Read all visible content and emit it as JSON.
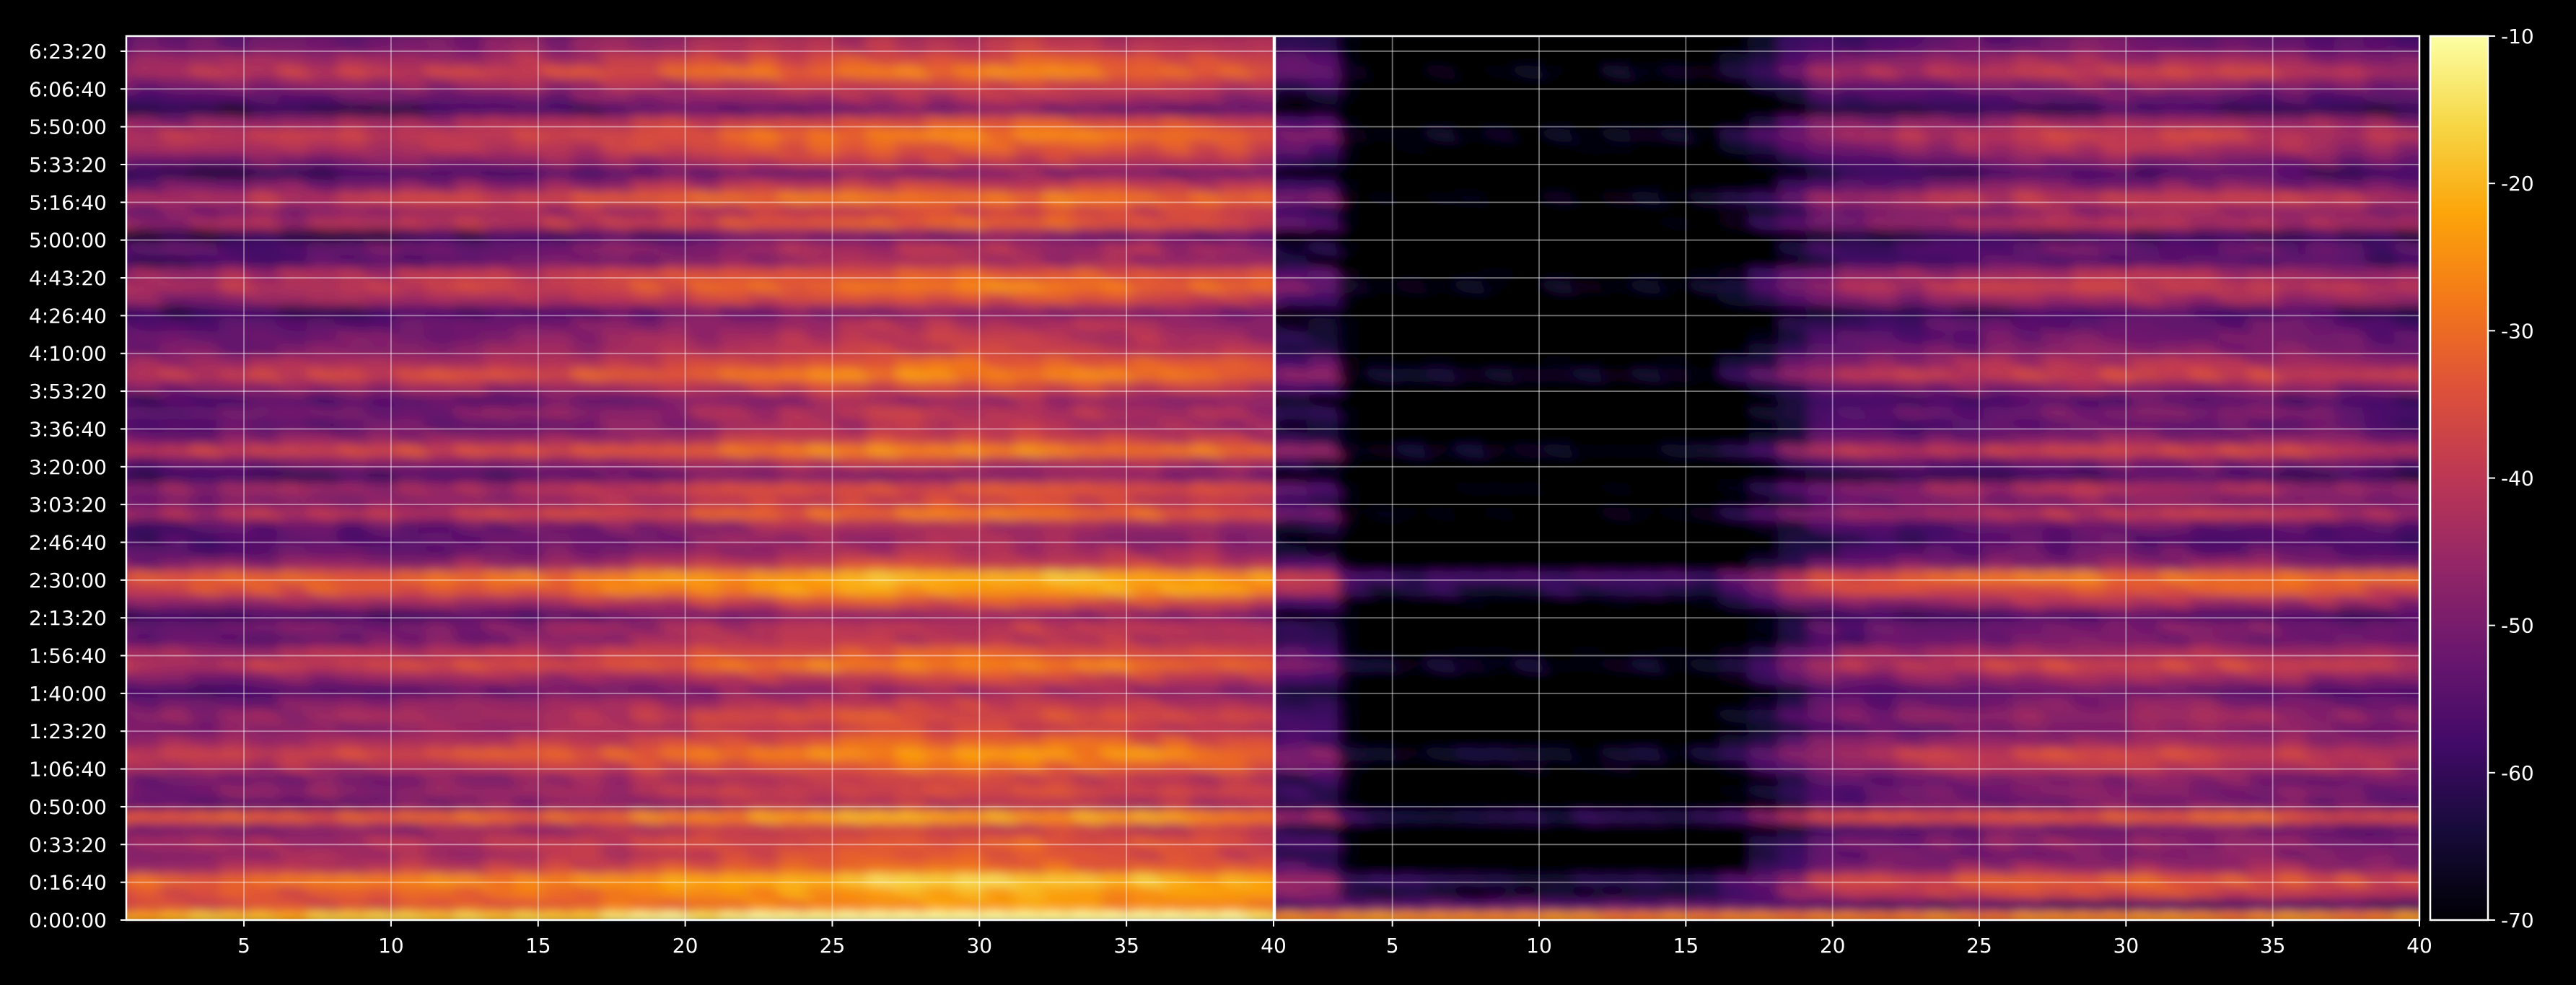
{
  "chart_data": {
    "type": "heatmap",
    "title": "",
    "xlabel": "",
    "ylabel": "",
    "grid": true,
    "colormap": "inferno",
    "background": "#000000",
    "panels": [
      {
        "name": "",
        "xlim": [
          1,
          40
        ],
        "x_ticks": [
          5,
          10,
          15,
          20,
          25,
          30,
          35,
          40
        ]
      },
      {
        "name": "",
        "xlim": [
          1,
          40
        ],
        "x_ticks": [
          5,
          10,
          15,
          20,
          25,
          30,
          35,
          40
        ]
      }
    ],
    "y_tick_labels": [
      "0:00:00",
      "0:16:40",
      "0:33:20",
      "0:50:00",
      "1:06:40",
      "1:23:20",
      "1:40:00",
      "1:56:40",
      "2:13:20",
      "2:30:00",
      "2:46:40",
      "3:03:20",
      "3:20:00",
      "3:36:40",
      "3:53:20",
      "4:10:00",
      "4:26:40",
      "4:43:20",
      "5:00:00",
      "5:16:40",
      "5:33:20",
      "5:50:00",
      "6:06:40",
      "6:23:20"
    ],
    "y_tick_seconds": [
      0,
      1000,
      2000,
      3000,
      4000,
      5000,
      6000,
      7000,
      8000,
      9000,
      10000,
      11000,
      12000,
      13000,
      14000,
      15000,
      16000,
      17000,
      18000,
      19000,
      20000,
      21000,
      22000,
      23000
    ],
    "ylim_seconds": [
      0,
      23400
    ],
    "colorbar": {
      "range": [
        -70,
        -10
      ],
      "ticks": [
        "-10",
        "-20",
        "-30",
        "-40",
        "-50",
        "-60",
        "-70"
      ],
      "tick_values": [
        -10,
        -20,
        -30,
        -40,
        -50,
        -60,
        -70
      ]
    },
    "row_intensity_left": [
      -16,
      -32,
      -30,
      -25,
      -38,
      -42,
      -40,
      -45,
      -30,
      -48,
      -44,
      -46,
      -38,
      -33,
      -40,
      -45,
      -42,
      -46,
      -52,
      -44,
      -35,
      -40,
      -48,
      -47,
      -54,
      -42,
      -30,
      -28,
      -44,
      -50,
      -52,
      -50,
      -38,
      -45,
      -42,
      -55,
      -48,
      -34,
      -45,
      -50,
      -48,
      -52,
      -44,
      -34,
      -40,
      -46,
      -48,
      -50,
      -55,
      -42,
      -36,
      -40,
      -52,
      -50,
      -58,
      -40,
      -44,
      -36,
      -46,
      -56,
      -46,
      -40,
      -36,
      -42,
      -58,
      -50,
      -44,
      -36,
      -42,
      -48
    ],
    "row_intensity_right": [
      -26,
      -56,
      -44,
      -40,
      -52,
      -56,
      -54,
      -58,
      -40,
      -58,
      -56,
      -56,
      -48,
      -44,
      -52,
      -56,
      -52,
      -56,
      -60,
      -52,
      -44,
      -50,
      -58,
      -56,
      -62,
      -50,
      -40,
      -36,
      -54,
      -60,
      -62,
      -60,
      -48,
      -56,
      -50,
      -64,
      -58,
      -44,
      -56,
      -60,
      -58,
      -62,
      -54,
      -44,
      -50,
      -56,
      -58,
      -60,
      -64,
      -52,
      -46,
      -50,
      -62,
      -60,
      -66,
      -50,
      -54,
      -46,
      -56,
      -64,
      -56,
      -50,
      -46,
      -52,
      -66,
      -60,
      -54,
      -46,
      -52,
      -58
    ],
    "column_profile_left_mid": [
      1,
      20,
      -32
    ],
    "column_profile_left_end": [
      40,
      -26
    ],
    "column_profile_right_dark": [
      4,
      16,
      -68
    ]
  }
}
